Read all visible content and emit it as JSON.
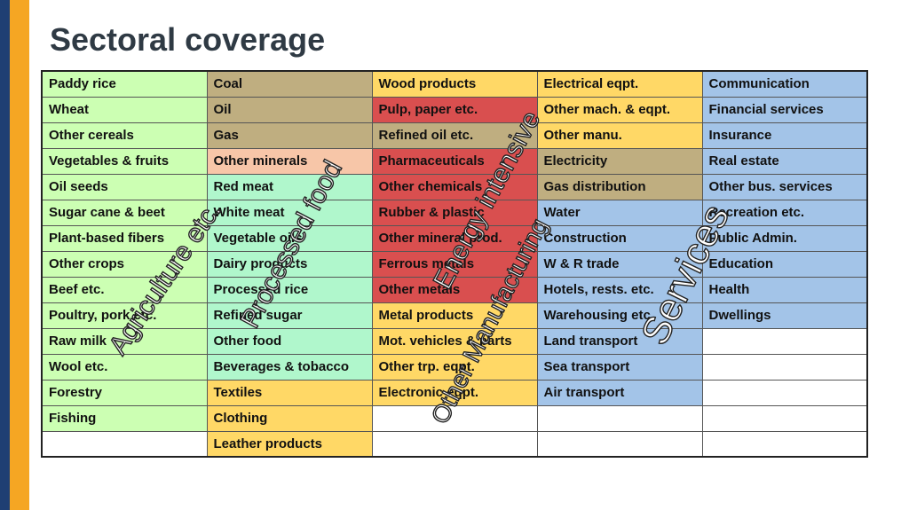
{
  "title": "Sectoral coverage",
  "columns": [
    [
      {
        "label": "Paddy rice",
        "color": "agri"
      },
      {
        "label": "Wheat",
        "color": "agri"
      },
      {
        "label": "Other cereals",
        "color": "agri"
      },
      {
        "label": "Vegetables & fruits",
        "color": "agri"
      },
      {
        "label": "Oil seeds",
        "color": "agri"
      },
      {
        "label": "Sugar cane & beet",
        "color": "agri"
      },
      {
        "label": "Plant-based fibers",
        "color": "agri"
      },
      {
        "label": "Other crops",
        "color": "agri"
      },
      {
        "label": "Beef etc.",
        "color": "agri"
      },
      {
        "label": "Poultry, pork etc.",
        "color": "agri"
      },
      {
        "label": "Raw milk",
        "color": "agri"
      },
      {
        "label": "Wool etc.",
        "color": "agri"
      },
      {
        "label": "Forestry",
        "color": "agri"
      },
      {
        "label": "Fishing",
        "color": "agri"
      },
      {
        "label": "",
        "color": "white"
      }
    ],
    [
      {
        "label": "Coal",
        "color": "tan"
      },
      {
        "label": "Oil",
        "color": "tan"
      },
      {
        "label": "Gas",
        "color": "tan"
      },
      {
        "label": "Other minerals",
        "color": "salmon"
      },
      {
        "label": "Red meat",
        "color": "mint"
      },
      {
        "label": "White meat",
        "color": "mint"
      },
      {
        "label": "Vegetable oils",
        "color": "mint"
      },
      {
        "label": "Dairy products",
        "color": "mint"
      },
      {
        "label": "Processed rice",
        "color": "mint"
      },
      {
        "label": "Refined sugar",
        "color": "mint"
      },
      {
        "label": "Other food",
        "color": "mint"
      },
      {
        "label": "Beverages & tobacco",
        "color": "mint"
      },
      {
        "label": "Textiles",
        "color": "yellow"
      },
      {
        "label": "Clothing",
        "color": "yellow"
      },
      {
        "label": "Leather products",
        "color": "yellow"
      }
    ],
    [
      {
        "label": "Wood products",
        "color": "yellow"
      },
      {
        "label": "Pulp, paper etc.",
        "color": "red"
      },
      {
        "label": "Refined oil etc.",
        "color": "tan"
      },
      {
        "label": "Pharmaceuticals",
        "color": "red"
      },
      {
        "label": "Other chemicals",
        "color": "red"
      },
      {
        "label": "Rubber & plastic",
        "color": "red"
      },
      {
        "label": "Other mineral prod.",
        "color": "red"
      },
      {
        "label": "Ferrous metals",
        "color": "red"
      },
      {
        "label": "Other metals",
        "color": "red"
      },
      {
        "label": "Metal products",
        "color": "yellow"
      },
      {
        "label": "Mot. vehicles & parts",
        "color": "yellow"
      },
      {
        "label": "Other trp. eqpt.",
        "color": "yellow"
      },
      {
        "label": "Electronic eqpt.",
        "color": "yellow"
      },
      {
        "label": "",
        "color": "white"
      },
      {
        "label": "",
        "color": "white"
      }
    ],
    [
      {
        "label": "Electrical eqpt.",
        "color": "yellow"
      },
      {
        "label": "Other mach. & eqpt.",
        "color": "yellow"
      },
      {
        "label": "Other manu.",
        "color": "yellow"
      },
      {
        "label": "Electricity",
        "color": "tan"
      },
      {
        "label": "Gas distribution",
        "color": "tan"
      },
      {
        "label": "Water",
        "color": "blue"
      },
      {
        "label": "Construction",
        "color": "blue"
      },
      {
        "label": "W & R trade",
        "color": "blue"
      },
      {
        "label": "Hotels, rests. etc.",
        "color": "blue"
      },
      {
        "label": "Warehousing etc.",
        "color": "blue"
      },
      {
        "label": "Land transport",
        "color": "blue"
      },
      {
        "label": "Sea transport",
        "color": "blue"
      },
      {
        "label": "Air transport",
        "color": "blue"
      },
      {
        "label": "",
        "color": "white"
      },
      {
        "label": "",
        "color": "white"
      }
    ],
    [
      {
        "label": "Communication",
        "color": "blue"
      },
      {
        "label": "Financial services",
        "color": "blue"
      },
      {
        "label": "Insurance",
        "color": "blue"
      },
      {
        "label": "Real estate",
        "color": "blue"
      },
      {
        "label": "Other bus. services",
        "color": "blue"
      },
      {
        "label": "Recreation etc.",
        "color": "blue"
      },
      {
        "label": "Public Admin.",
        "color": "blue"
      },
      {
        "label": "Education",
        "color": "blue"
      },
      {
        "label": "Health",
        "color": "blue"
      },
      {
        "label": "Dwellings",
        "color": "blue"
      },
      {
        "label": "",
        "color": "white"
      },
      {
        "label": "",
        "color": "white"
      },
      {
        "label": "",
        "color": "white"
      },
      {
        "label": "",
        "color": "white"
      },
      {
        "label": "",
        "color": "white"
      }
    ]
  ],
  "overlays": {
    "agriculture": "Agriculture etc.",
    "processed_food": "Processed food",
    "energy_intensive": "Energy intensive",
    "other_manufacturing": "Other Manufacturing",
    "services": "Services"
  }
}
